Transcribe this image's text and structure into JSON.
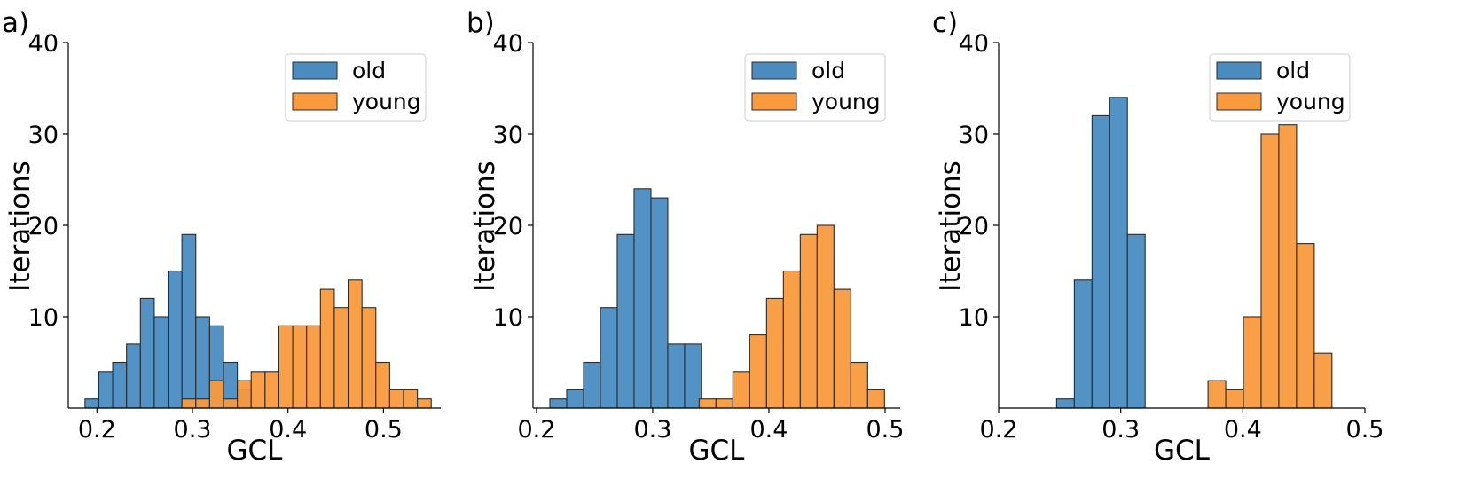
{
  "chart_data": [
    {
      "panel_label": "a)",
      "type": "bar",
      "xlabel": "GCL",
      "ylabel": "Iterations",
      "xlim": [
        0.17,
        0.56
      ],
      "ylim": [
        0,
        40
      ],
      "xticks": [
        0.2,
        0.3,
        0.4,
        0.5
      ],
      "xtick_labels": [
        "0.2",
        "0.3",
        "0.4",
        "0.5"
      ],
      "yticks": [
        10,
        20,
        30,
        40
      ],
      "ytick_labels": [
        "10",
        "20",
        "30",
        "40"
      ],
      "bin_width": 0.0145,
      "legend": {
        "placement": "top-right",
        "entries": [
          "old",
          "young"
        ]
      },
      "series": [
        {
          "name": "old",
          "color": "#4a8cc2",
          "bins": [
            {
              "x": 0.1875,
              "value": 1
            },
            {
              "x": 0.202,
              "value": 4
            },
            {
              "x": 0.2165,
              "value": 5
            },
            {
              "x": 0.231,
              "value": 7
            },
            {
              "x": 0.2455,
              "value": 12
            },
            {
              "x": 0.26,
              "value": 10
            },
            {
              "x": 0.2745,
              "value": 15
            },
            {
              "x": 0.289,
              "value": 19
            },
            {
              "x": 0.3035,
              "value": 10
            },
            {
              "x": 0.318,
              "value": 9
            },
            {
              "x": 0.3325,
              "value": 5
            },
            {
              "x": 0.347,
              "value": 2
            }
          ]
        },
        {
          "name": "young",
          "color": "#f99a3e",
          "bins": [
            {
              "x": 0.289,
              "value": 1
            },
            {
              "x": 0.3035,
              "value": 1
            },
            {
              "x": 0.318,
              "value": 3
            },
            {
              "x": 0.3325,
              "value": 1
            },
            {
              "x": 0.347,
              "value": 3
            },
            {
              "x": 0.3615,
              "value": 4
            },
            {
              "x": 0.376,
              "value": 4
            },
            {
              "x": 0.3905,
              "value": 9
            },
            {
              "x": 0.405,
              "value": 9
            },
            {
              "x": 0.4195,
              "value": 9
            },
            {
              "x": 0.434,
              "value": 13
            },
            {
              "x": 0.4485,
              "value": 11
            },
            {
              "x": 0.463,
              "value": 14
            },
            {
              "x": 0.4775,
              "value": 11
            },
            {
              "x": 0.492,
              "value": 5
            },
            {
              "x": 0.5065,
              "value": 2
            },
            {
              "x": 0.521,
              "value": 2
            },
            {
              "x": 0.5355,
              "value": 1
            }
          ]
        }
      ]
    },
    {
      "panel_label": "b)",
      "type": "bar",
      "xlabel": "GCL",
      "ylabel": "Iterations",
      "xlim": [
        0.197,
        0.513
      ],
      "ylim": [
        0,
        40
      ],
      "xticks": [
        0.2,
        0.3,
        0.4,
        0.5
      ],
      "xtick_labels": [
        "0.2",
        "0.3",
        "0.4",
        "0.5"
      ],
      "yticks": [
        10,
        20,
        30,
        40
      ],
      "ytick_labels": [
        "10",
        "20",
        "30",
        "40"
      ],
      "bin_width": 0.0145,
      "legend": {
        "placement": "top-right",
        "entries": [
          "old",
          "young"
        ]
      },
      "series": [
        {
          "name": "old",
          "color": "#4a8cc2",
          "bins": [
            {
              "x": 0.2115,
              "value": 1
            },
            {
              "x": 0.226,
              "value": 2
            },
            {
              "x": 0.2405,
              "value": 5
            },
            {
              "x": 0.255,
              "value": 11
            },
            {
              "x": 0.2695,
              "value": 19
            },
            {
              "x": 0.284,
              "value": 24
            },
            {
              "x": 0.2985,
              "value": 23
            },
            {
              "x": 0.313,
              "value": 7
            },
            {
              "x": 0.3275,
              "value": 7
            }
          ]
        },
        {
          "name": "young",
          "color": "#f99a3e",
          "bins": [
            {
              "x": 0.34,
              "value": 1
            },
            {
              "x": 0.3545,
              "value": 1
            },
            {
              "x": 0.369,
              "value": 4
            },
            {
              "x": 0.3835,
              "value": 8
            },
            {
              "x": 0.398,
              "value": 12
            },
            {
              "x": 0.4125,
              "value": 15
            },
            {
              "x": 0.427,
              "value": 19
            },
            {
              "x": 0.4415,
              "value": 20
            },
            {
              "x": 0.456,
              "value": 13
            },
            {
              "x": 0.4705,
              "value": 5
            },
            {
              "x": 0.485,
              "value": 2
            }
          ]
        }
      ]
    },
    {
      "panel_label": "c)",
      "type": "bar",
      "xlabel": "GCL",
      "ylabel": "Iterations",
      "xlim": [
        0.2,
        0.5
      ],
      "ylim": [
        0,
        40
      ],
      "xticks": [
        0.2,
        0.3,
        0.4,
        0.5
      ],
      "xtick_labels": [
        "0.2",
        "0.3",
        "0.4",
        "0.5"
      ],
      "yticks": [
        10,
        20,
        30,
        40
      ],
      "ytick_labels": [
        "10",
        "20",
        "30",
        "40"
      ],
      "bin_width": 0.0145,
      "legend": {
        "placement": "top-right",
        "entries": [
          "old",
          "young"
        ]
      },
      "series": [
        {
          "name": "old",
          "color": "#4a8cc2",
          "bins": [
            {
              "x": 0.2475,
              "value": 1
            },
            {
              "x": 0.262,
              "value": 14
            },
            {
              "x": 0.2765,
              "value": 32
            },
            {
              "x": 0.291,
              "value": 34
            },
            {
              "x": 0.3055,
              "value": 19
            }
          ]
        },
        {
          "name": "young",
          "color": "#f99a3e",
          "bins": [
            {
              "x": 0.3715,
              "value": 3
            },
            {
              "x": 0.386,
              "value": 2
            },
            {
              "x": 0.4005,
              "value": 10
            },
            {
              "x": 0.415,
              "value": 30
            },
            {
              "x": 0.4295,
              "value": 31
            },
            {
              "x": 0.444,
              "value": 18
            },
            {
              "x": 0.4585,
              "value": 6
            }
          ]
        }
      ]
    }
  ]
}
